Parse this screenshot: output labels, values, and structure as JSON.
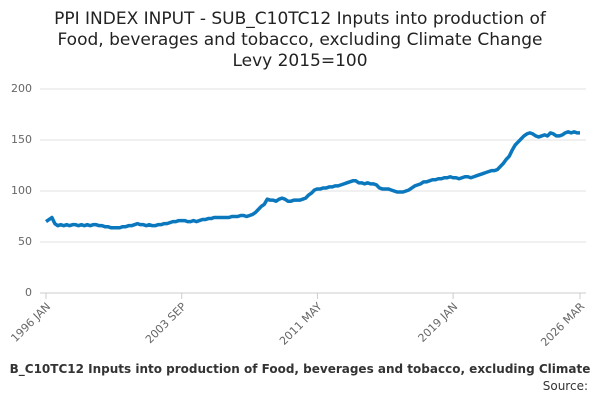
{
  "chart_data": {
    "type": "line",
    "title": [
      "PPI INDEX INPUT - SUB_C10TC12 Inputs into production of",
      "Food, beverages and tobacco, excluding Climate Change",
      "Levy 2015=100"
    ],
    "caption": "B_C10TC12 Inputs into production of Food, beverages and tobacco, excluding Climate",
    "source": "Source:",
    "categories": [
      "1996 JAN",
      null,
      null,
      null,
      null,
      null,
      null,
      null,
      null,
      null,
      null,
      null,
      null,
      null,
      null,
      null,
      null,
      null,
      null,
      null,
      null,
      null,
      null,
      null,
      null,
      null,
      null,
      null,
      null,
      null,
      null,
      null,
      null,
      null,
      null,
      null,
      null,
      null,
      null,
      null,
      null,
      null,
      null,
      null,
      null,
      null,
      "2003 SEP",
      null,
      null,
      null,
      null,
      null,
      null,
      null,
      null,
      null,
      null,
      null,
      null,
      null,
      null,
      null,
      null,
      null,
      null,
      null,
      null,
      null,
      null,
      null,
      null,
      null,
      null,
      null,
      null,
      null,
      null,
      null,
      null,
      null,
      null,
      null,
      null,
      null,
      null,
      null,
      null,
      null,
      null,
      null,
      null,
      null,
      "2011 MAY",
      null,
      null,
      null,
      null,
      null,
      null,
      null,
      null,
      null,
      null,
      null,
      null,
      null,
      null,
      null,
      null,
      null,
      null,
      null,
      null,
      null,
      null,
      null,
      null,
      null,
      null,
      null,
      null,
      null,
      null,
      null,
      null,
      null,
      null,
      null,
      null,
      null,
      null,
      null,
      null,
      null,
      null,
      null,
      null,
      null,
      "2019 JAN",
      null,
      null,
      null,
      null,
      null,
      null,
      null,
      null,
      null,
      null,
      null,
      null,
      null,
      null,
      null,
      null,
      null,
      null,
      null,
      null,
      null,
      null,
      null,
      null,
      null,
      null,
      null,
      null,
      null,
      null,
      null,
      null,
      null,
      null,
      null,
      null,
      null,
      null,
      null,
      null,
      null,
      null,
      "2026 MAR"
    ],
    "series": [
      {
        "name": "SUB_C10TC12",
        "color": "#0b78be",
        "values": [
          70,
          72,
          74,
          68,
          66,
          67,
          66,
          67,
          66,
          67,
          67,
          66,
          67,
          66,
          67,
          66,
          67,
          67,
          66,
          66,
          65,
          65,
          64,
          64,
          64,
          64,
          65,
          65,
          66,
          66,
          67,
          68,
          67,
          67,
          66,
          67,
          66,
          66,
          67,
          67,
          68,
          68,
          69,
          70,
          70,
          71,
          71,
          71,
          70,
          70,
          71,
          70,
          71,
          72,
          72,
          73,
          73,
          74,
          74,
          74,
          74,
          74,
          74,
          75,
          75,
          75,
          76,
          76,
          75,
          76,
          77,
          79,
          82,
          85,
          87,
          92,
          91,
          91,
          90,
          92,
          93,
          92,
          90,
          90,
          91,
          91,
          91,
          92,
          93,
          96,
          98,
          101,
          102,
          102,
          103,
          103,
          104,
          104,
          105,
          105,
          106,
          107,
          108,
          109,
          110,
          110,
          108,
          108,
          107,
          108,
          107,
          107,
          106,
          103,
          102,
          102,
          102,
          101,
          100,
          99,
          99,
          99,
          100,
          101,
          103,
          105,
          106,
          107,
          109,
          109,
          110,
          111,
          111,
          112,
          112,
          113,
          113,
          114,
          113,
          113,
          112,
          113,
          114,
          114,
          113,
          114,
          115,
          116,
          117,
          118,
          119,
          120,
          120,
          121,
          124,
          127,
          131,
          134,
          140,
          145,
          148,
          151,
          154,
          156,
          157,
          156,
          154,
          153,
          154,
          155,
          154,
          157,
          156,
          154,
          154,
          155,
          157,
          158,
          157,
          158,
          157,
          157
        ]
      }
    ],
    "ylim": [
      0,
      200
    ],
    "yticks": [
      0,
      50,
      100,
      150,
      200
    ],
    "grid": true
  }
}
